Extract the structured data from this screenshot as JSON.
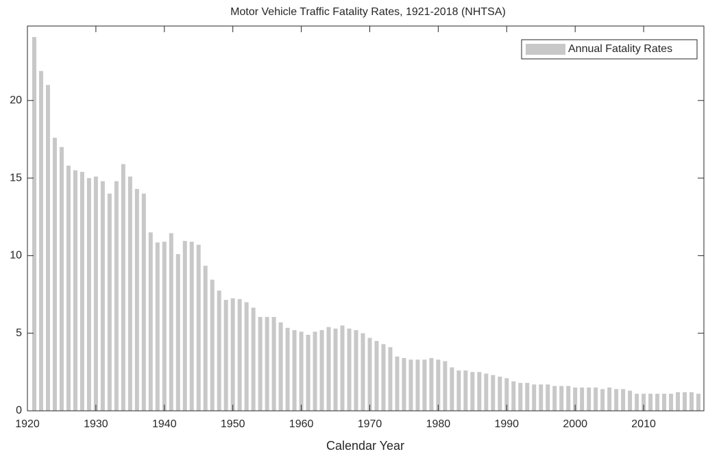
{
  "chart_data": {
    "type": "bar",
    "title": "Motor Vehicle Traffic Fatality Rates, 1921-2018 (NHTSA)",
    "xlabel": "Calendar Year",
    "x": [
      1921,
      1922,
      1923,
      1924,
      1925,
      1926,
      1927,
      1928,
      1929,
      1930,
      1931,
      1932,
      1933,
      1934,
      1935,
      1936,
      1937,
      1938,
      1939,
      1940,
      1941,
      1942,
      1943,
      1944,
      1945,
      1946,
      1947,
      1948,
      1949,
      1950,
      1951,
      1952,
      1953,
      1954,
      1955,
      1956,
      1957,
      1958,
      1959,
      1960,
      1961,
      1962,
      1963,
      1964,
      1965,
      1966,
      1967,
      1968,
      1969,
      1970,
      1971,
      1972,
      1973,
      1974,
      1975,
      1976,
      1977,
      1978,
      1979,
      1980,
      1981,
      1982,
      1983,
      1984,
      1985,
      1986,
      1987,
      1988,
      1989,
      1990,
      1991,
      1992,
      1993,
      1994,
      1995,
      1996,
      1997,
      1998,
      1999,
      2000,
      2001,
      2002,
      2003,
      2004,
      2005,
      2006,
      2007,
      2008,
      2009,
      2010,
      2011,
      2012,
      2013,
      2014,
      2015,
      2016,
      2017,
      2018
    ],
    "series": [
      {
        "name": "Annual Fatality Rates",
        "color": "#c8c8c8",
        "values": [
          24.09,
          21.9,
          21.0,
          17.6,
          17.0,
          15.8,
          15.5,
          15.4,
          15.0,
          15.1,
          14.8,
          14.0,
          14.8,
          15.9,
          15.1,
          14.3,
          14.0,
          11.5,
          10.85,
          10.9,
          11.45,
          10.1,
          10.95,
          10.9,
          10.7,
          9.35,
          8.45,
          7.75,
          7.15,
          7.25,
          7.2,
          7.0,
          6.65,
          6.05,
          6.05,
          6.05,
          5.7,
          5.35,
          5.2,
          5.1,
          4.9,
          5.1,
          5.2,
          5.4,
          5.3,
          5.5,
          5.3,
          5.2,
          5.0,
          4.7,
          4.5,
          4.3,
          4.1,
          3.5,
          3.4,
          3.3,
          3.3,
          3.3,
          3.4,
          3.3,
          3.2,
          2.8,
          2.6,
          2.6,
          2.5,
          2.5,
          2.4,
          2.3,
          2.2,
          2.1,
          1.9,
          1.8,
          1.8,
          1.7,
          1.7,
          1.7,
          1.6,
          1.6,
          1.6,
          1.5,
          1.5,
          1.5,
          1.5,
          1.4,
          1.5,
          1.4,
          1.4,
          1.3,
          1.1,
          1.1,
          1.1,
          1.1,
          1.1,
          1.1,
          1.2,
          1.2,
          1.2,
          1.1
        ]
      }
    ],
    "xlim": [
      1920,
      2018.8
    ],
    "xticks": [
      1920,
      1930,
      1940,
      1950,
      1960,
      1970,
      1980,
      1990,
      2000,
      2010
    ],
    "ylim": [
      0,
      24.8
    ],
    "yticks": [
      0,
      5,
      10,
      15,
      20
    ],
    "legend": "northeast"
  }
}
